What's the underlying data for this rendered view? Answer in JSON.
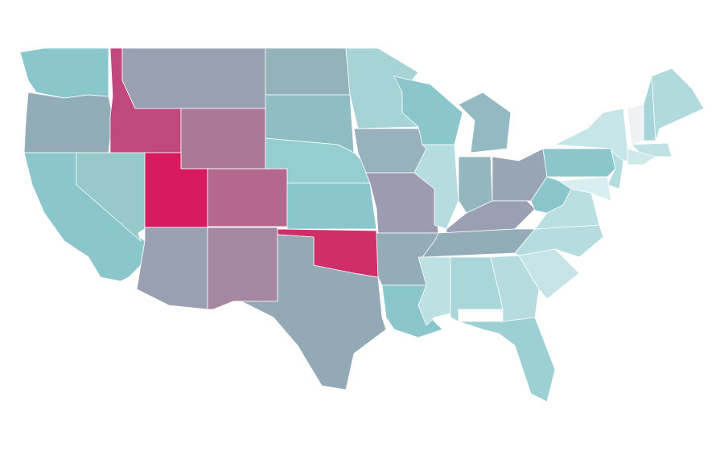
{
  "map": {
    "regions": [
      {
        "color": "#8ac6cc"
      },
      {
        "color": "#93adb8"
      },
      {
        "color": "#8ac6cc"
      },
      {
        "color": "#97c9cb"
      },
      {
        "color": "#c0487a"
      },
      {
        "color": "#99a0b2"
      },
      {
        "color": "#ad7896"
      },
      {
        "color": "#d81b60"
      },
      {
        "color": "#b4688e"
      },
      {
        "color": "#99a0b2"
      },
      {
        "color": "#a687a2"
      },
      {
        "color": "#93b2ba"
      },
      {
        "color": "#8fbdc3"
      },
      {
        "color": "#95ced1"
      },
      {
        "color": "#8ac6cc"
      },
      {
        "color": "#cf2e69"
      },
      {
        "color": "#93a9b6"
      },
      {
        "color": "#a5d3d6"
      },
      {
        "color": "#98b2bd"
      },
      {
        "color": "#9d9bb0"
      },
      {
        "color": "#93acb8"
      },
      {
        "color": "#8ac6cc"
      },
      {
        "color": "#8ac6cc"
      },
      {
        "color": "#b5dde0"
      },
      {
        "color": "#93bac2"
      },
      {
        "color": "#93b6bf"
      },
      {
        "color": "#98a5b5"
      },
      {
        "color": "#9a9fb3"
      },
      {
        "color": "#93adb8"
      },
      {
        "color": "#bde0e2"
      },
      {
        "color": "#a9d6d8"
      },
      {
        "color": "#b6dcdf"
      },
      {
        "color": "#9dd0d3"
      },
      {
        "color": "#c6e4e6"
      },
      {
        "color": "#b5dde0"
      },
      {
        "color": "#b9dfe1"
      },
      {
        "color": "#8ac6cc"
      },
      {
        "color": "#8ac6cc"
      },
      {
        "color": "#c6e5e7"
      },
      {
        "color": "#b5dde0"
      },
      {
        "color": "#d9eef0"
      },
      {
        "color": "#eef2f4"
      },
      {
        "color": "#a6d4d8"
      },
      {
        "color": "#b1dadd"
      },
      {
        "color": "#c1e2e4"
      },
      {
        "color": "#cfe9ea"
      }
    ]
  }
}
